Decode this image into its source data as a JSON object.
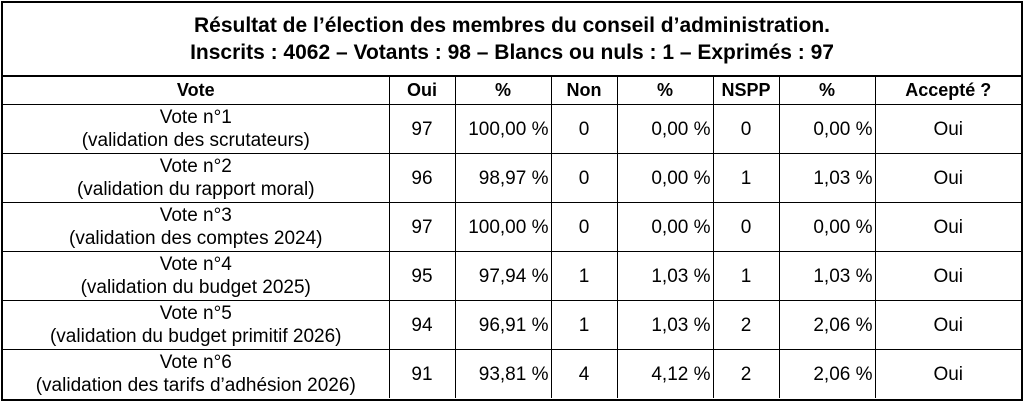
{
  "title": {
    "line1": "Résultat de l’élection des membres du conseil d’administration.",
    "line2": "Inscrits : 4062 – Votants : 98 – Blancs ou nuls : 1 – Exprimés : 97"
  },
  "headers": [
    "Vote",
    "Oui",
    "%",
    "Non",
    "%",
    "NSPP",
    "%",
    "Accepté ?"
  ],
  "rows": [
    {
      "vote": "Vote n°1",
      "desc": "(validation des scrutateurs)",
      "oui": "97",
      "oui_pct": "100,00 %",
      "non": "0",
      "non_pct": "0,00 %",
      "nspp": "0",
      "nspp_pct": "0,00 %",
      "accepte": "Oui"
    },
    {
      "vote": "Vote n°2",
      "desc": "(validation du rapport moral)",
      "oui": "96",
      "oui_pct": "98,97 %",
      "non": "0",
      "non_pct": "0,00 %",
      "nspp": "1",
      "nspp_pct": "1,03 %",
      "accepte": "Oui"
    },
    {
      "vote": "Vote n°3",
      "desc": "(validation des comptes 2024)",
      "oui": "97",
      "oui_pct": "100,00 %",
      "non": "0",
      "non_pct": "0,00 %",
      "nspp": "0",
      "nspp_pct": "0,00 %",
      "accepte": "Oui"
    },
    {
      "vote": "Vote n°4",
      "desc": "(validation du budget 2025)",
      "oui": "95",
      "oui_pct": "97,94 %",
      "non": "1",
      "non_pct": "1,03 %",
      "nspp": "1",
      "nspp_pct": "1,03 %",
      "accepte": "Oui"
    },
    {
      "vote": "Vote n°5",
      "desc": "(validation du budget primitif 2026)",
      "oui": "94",
      "oui_pct": "96,91 %",
      "non": "1",
      "non_pct": "1,03 %",
      "nspp": "2",
      "nspp_pct": "2,06 %",
      "accepte": "Oui"
    },
    {
      "vote": "Vote n°6",
      "desc": "(validation des tarifs d’adhésion 2026)",
      "oui": "91",
      "oui_pct": "93,81 %",
      "non": "4",
      "non_pct": "4,12 %",
      "nspp": "2",
      "nspp_pct": "2,06 %",
      "accepte": "Oui"
    }
  ]
}
